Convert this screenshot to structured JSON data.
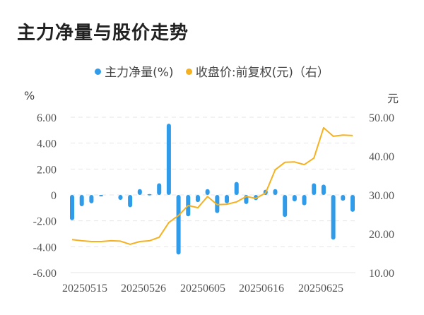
{
  "title": "主力净量与股价走势",
  "legend": [
    {
      "label": "主力净量(%)",
      "color": "#2f9be9"
    },
    {
      "label": "收盘价:前复权(元)（右）",
      "color": "#f5b120"
    }
  ],
  "left_unit": "%",
  "right_unit": "元",
  "chart_data": {
    "type": "bar+line",
    "title": "主力净量与股价走势",
    "x_tick_labels": [
      "20250515",
      "20250526",
      "20250605",
      "20250616",
      "20250625"
    ],
    "left_axis": {
      "label": "%",
      "ticks": [
        "6.00",
        "4.00",
        "2.00",
        "0",
        "-2.00",
        "-4.00",
        "-6.00"
      ],
      "range": [
        -6,
        6
      ]
    },
    "right_axis": {
      "label": "元",
      "ticks": [
        "50.00",
        "40.00",
        "30.00",
        "20.00",
        "10.00"
      ],
      "range": [
        10,
        50
      ]
    },
    "grid": "horizontal dashed",
    "legend_position": "top",
    "series": [
      {
        "name": "主力净量(%)",
        "type": "bar",
        "axis": "left",
        "color": "#2f9be9",
        "values": [
          -1.95,
          -0.87,
          -0.65,
          -0.1,
          0,
          -0.38,
          -0.95,
          0.45,
          0.07,
          0.9,
          5.5,
          -4.6,
          -1.65,
          -0.55,
          0.45,
          -1.4,
          -0.65,
          1.0,
          -0.7,
          -0.4,
          0.4,
          0.45,
          -1.7,
          -0.5,
          -0.8,
          0.9,
          0.8,
          -3.45,
          -0.45,
          -1.3
        ]
      },
      {
        "name": "收盘价:前复权(元)（右）",
        "type": "line",
        "axis": "right",
        "color": "#f5b120",
        "values": [
          18.5,
          18.2,
          18.0,
          18.0,
          18.2,
          18.1,
          17.3,
          18.0,
          18.2,
          19.1,
          22.9,
          24.7,
          27.3,
          26.7,
          29.6,
          27.5,
          27.6,
          28.2,
          29.6,
          29.1,
          30.5,
          36.5,
          38.4,
          38.5,
          37.8,
          39.5,
          47.3,
          45.1,
          45.4,
          45.3
        ]
      }
    ]
  }
}
